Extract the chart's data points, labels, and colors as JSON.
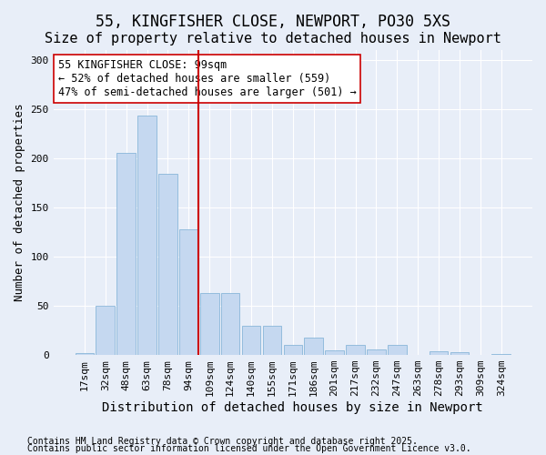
{
  "title1": "55, KINGFISHER CLOSE, NEWPORT, PO30 5XS",
  "title2": "Size of property relative to detached houses in Newport",
  "xlabel": "Distribution of detached houses by size in Newport",
  "ylabel": "Number of detached properties",
  "categories": [
    "17sqm",
    "32sqm",
    "48sqm",
    "63sqm",
    "78sqm",
    "94sqm",
    "109sqm",
    "124sqm",
    "140sqm",
    "155sqm",
    "171sqm",
    "186sqm",
    "201sqm",
    "217sqm",
    "232sqm",
    "247sqm",
    "263sqm",
    "278sqm",
    "293sqm",
    "309sqm",
    "324sqm"
  ],
  "values": [
    2,
    50,
    205,
    243,
    184,
    128,
    63,
    63,
    30,
    30,
    10,
    18,
    5,
    10,
    6,
    10,
    0,
    4,
    3,
    0,
    1
  ],
  "bar_color": "#c5d8f0",
  "bar_edge_color": "#7aadd4",
  "vline_x": 5,
  "vline_color": "#cc0000",
  "annotation_text": "55 KINGFISHER CLOSE: 99sqm\n← 52% of detached houses are smaller (559)\n47% of semi-detached houses are larger (501) →",
  "annotation_box_color": "#ffffff",
  "annotation_box_edge_color": "#cc0000",
  "ylim": [
    0,
    310
  ],
  "yticks": [
    0,
    50,
    100,
    150,
    200,
    250,
    300
  ],
  "background_color": "#e8eef8",
  "footer1": "Contains HM Land Registry data © Crown copyright and database right 2025.",
  "footer2": "Contains public sector information licensed under the Open Government Licence v3.0.",
  "title_fontsize": 12,
  "subtitle_fontsize": 11,
  "label_fontsize": 9,
  "tick_fontsize": 8,
  "footer_fontsize": 7
}
